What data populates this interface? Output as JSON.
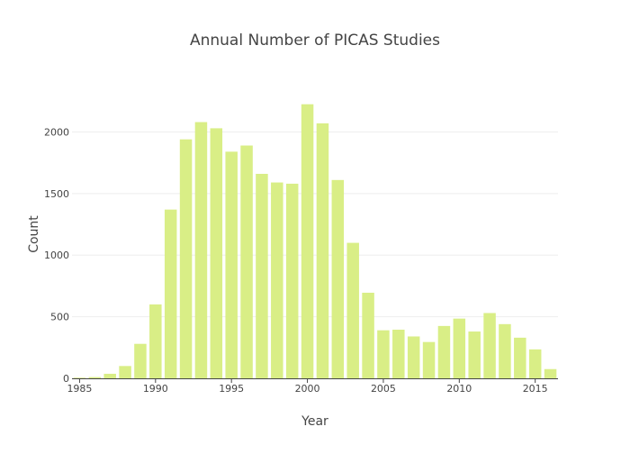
{
  "chart_data": {
    "type": "bar",
    "title": "Annual Number of PICAS Studies",
    "xlabel": "Year",
    "ylabel": "Count",
    "x": [
      1985,
      1986,
      1987,
      1988,
      1989,
      1990,
      1991,
      1992,
      1993,
      1994,
      1995,
      1996,
      1997,
      1998,
      1999,
      2000,
      2001,
      2002,
      2003,
      2004,
      2005,
      2006,
      2007,
      2008,
      2009,
      2010,
      2011,
      2012,
      2013,
      2014,
      2015,
      2016
    ],
    "values": [
      5,
      10,
      37,
      100,
      280,
      600,
      1370,
      1940,
      2080,
      2030,
      1840,
      1890,
      1660,
      1590,
      1580,
      2225,
      2070,
      1610,
      1100,
      695,
      390,
      395,
      340,
      295,
      425,
      485,
      380,
      530,
      440,
      330,
      235,
      75
    ],
    "xlim": [
      1984.5,
      2016.5
    ],
    "ylim": [
      0,
      2340
    ],
    "xticks": [
      1985,
      1990,
      1995,
      2000,
      2005,
      2010,
      2015
    ],
    "yticks": [
      0,
      500,
      1000,
      1500,
      2000
    ],
    "grid": true,
    "bar_color": "#d9ee86",
    "grid_color": "#eeeeee"
  }
}
